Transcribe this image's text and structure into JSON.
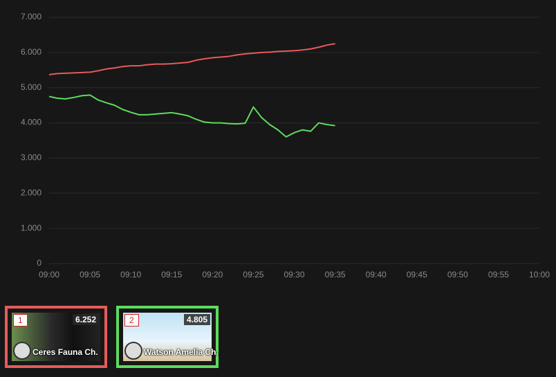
{
  "chart_data": {
    "type": "line",
    "x": [
      "09:00",
      "09:01",
      "09:02",
      "09:03",
      "09:04",
      "09:05",
      "09:06",
      "09:07",
      "09:08",
      "09:09",
      "09:10",
      "09:11",
      "09:12",
      "09:13",
      "09:14",
      "09:15",
      "09:16",
      "09:17",
      "09:18",
      "09:19",
      "09:20",
      "09:21",
      "09:22",
      "09:23",
      "09:24",
      "09:25",
      "09:26",
      "09:27",
      "09:28",
      "09:29",
      "09:30",
      "09:31",
      "09:32",
      "09:33",
      "09:34",
      "09:35"
    ],
    "series": [
      {
        "color": "#e85a5a",
        "values": [
          5370,
          5400,
          5410,
          5420,
          5430,
          5440,
          5480,
          5530,
          5560,
          5600,
          5620,
          5620,
          5650,
          5670,
          5670,
          5680,
          5700,
          5720,
          5780,
          5820,
          5850,
          5870,
          5890,
          5930,
          5960,
          5980,
          6000,
          6010,
          6030,
          6040,
          6050,
          6070,
          6100,
          6150,
          6210,
          6250
        ]
      },
      {
        "color": "#5ddc5d",
        "values": [
          4750,
          4700,
          4680,
          4720,
          4770,
          4790,
          4650,
          4570,
          4500,
          4380,
          4300,
          4230,
          4230,
          4250,
          4270,
          4290,
          4250,
          4200,
          4100,
          4020,
          4000,
          4000,
          3980,
          3970,
          3990,
          4450,
          4150,
          3950,
          3800,
          3600,
          3720,
          3800,
          3760,
          4000,
          3950,
          3920
        ]
      }
    ],
    "xlim": [
      "09:00",
      "10:00"
    ],
    "xticks": [
      "09:00",
      "09:05",
      "09:10",
      "09:15",
      "09:20",
      "09:25",
      "09:30",
      "09:35",
      "09:40",
      "09:45",
      "09:50",
      "09:55",
      "10:00"
    ],
    "ylim": [
      0,
      7000
    ],
    "yticks": [
      0,
      {
        "value": 1000,
        "label": "1.000"
      },
      {
        "value": 2000,
        "label": "2.000"
      },
      {
        "value": 3000,
        "label": "3.000"
      },
      {
        "value": 4000,
        "label": "4.000"
      },
      {
        "value": 5000,
        "label": "5.000"
      },
      {
        "value": 6000,
        "label": "6.000"
      },
      {
        "value": 7000,
        "label": "7.000"
      }
    ],
    "grid": true
  },
  "cards": [
    {
      "rank": "1",
      "value": "6.252",
      "name": "Ceres Fauna Ch.",
      "color": "#e85a5a"
    },
    {
      "rank": "2",
      "value": "4.805",
      "name": "Watson Amelia Ch.",
      "color": "#5ddc5d"
    }
  ]
}
